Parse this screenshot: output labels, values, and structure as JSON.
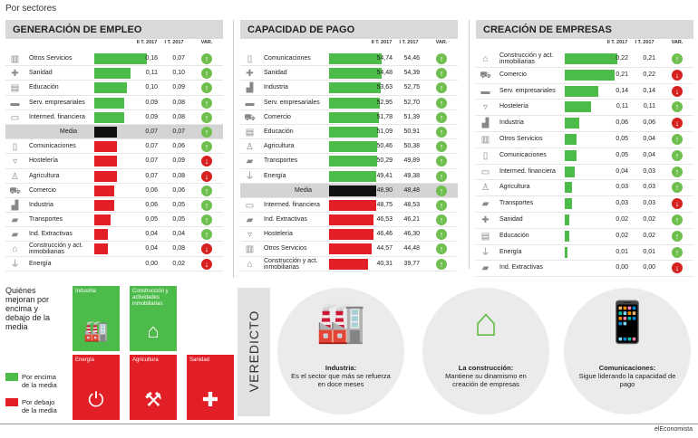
{
  "title": "Por sectores",
  "chart_data": [
    {
      "type": "bar",
      "title": "GENERACIÓN DE EMPLEO",
      "columns": [
        "II T. 2017",
        "I T. 2017",
        "VAR."
      ],
      "xlim": [
        0,
        0.16
      ],
      "rows": [
        {
          "label": "Otros Servicios",
          "v1": "0,16",
          "v2": "0,07",
          "value": 0.16,
          "trend": "up",
          "color": "#4dbb4a",
          "icon": "buildings-icon"
        },
        {
          "label": "Sanidad",
          "v1": "0,11",
          "v2": "0,10",
          "value": 0.11,
          "trend": "up",
          "color": "#4dbb4a",
          "icon": "cross-icon"
        },
        {
          "label": "Educación",
          "v1": "0,10",
          "v2": "0,09",
          "value": 0.1,
          "trend": "up",
          "color": "#4dbb4a",
          "icon": "school-icon"
        },
        {
          "label": "Serv. empresariales",
          "v1": "0,09",
          "v2": "0,08",
          "value": 0.09,
          "trend": "up",
          "color": "#4dbb4a",
          "icon": "briefcase-icon"
        },
        {
          "label": "Intermed. financiera",
          "v1": "0,09",
          "v2": "0,08",
          "value": 0.09,
          "trend": "up",
          "color": "#4dbb4a",
          "icon": "money-icon"
        },
        {
          "label": "Media",
          "v1": "0,07",
          "v2": "0,07",
          "value": 0.07,
          "trend": "up",
          "color": "#111111",
          "icon": "",
          "median": true
        },
        {
          "label": "Comunicaciones",
          "v1": "0,07",
          "v2": "0,06",
          "value": 0.07,
          "trend": "up",
          "color": "#e21f26",
          "icon": "phone-icon"
        },
        {
          "label": "Hostelería",
          "v1": "0,07",
          "v2": "0,09",
          "value": 0.07,
          "trend": "down",
          "color": "#e21f26",
          "icon": "glass-icon"
        },
        {
          "label": "Agricultura",
          "v1": "0,07",
          "v2": "0,08",
          "value": 0.07,
          "trend": "down",
          "color": "#e21f26",
          "icon": "farmer-icon"
        },
        {
          "label": "Comercio",
          "v1": "0,06",
          "v2": "0,06",
          "value": 0.06,
          "trend": "up",
          "color": "#e21f26",
          "icon": "cart-icon"
        },
        {
          "label": "Industria",
          "v1": "0,06",
          "v2": "0,05",
          "value": 0.06,
          "trend": "up",
          "color": "#e21f26",
          "icon": "factory-icon"
        },
        {
          "label": "Transportes",
          "v1": "0,05",
          "v2": "0,05",
          "value": 0.05,
          "trend": "up",
          "color": "#e21f26",
          "icon": "truck-icon"
        },
        {
          "label": "Ind. Extractivas",
          "v1": "0,04",
          "v2": "0,04",
          "value": 0.04,
          "trend": "up",
          "color": "#e21f26",
          "icon": "truck-icon"
        },
        {
          "label": "Construcción y act. inmobiliarias",
          "v1": "0,04",
          "v2": "0,08",
          "value": 0.04,
          "trend": "down",
          "color": "#e21f26",
          "icon": "house-icon"
        },
        {
          "label": "Energía",
          "v1": "0,00",
          "v2": "0,02",
          "value": 0.0,
          "trend": "down",
          "color": "#e21f26",
          "icon": "plug-icon"
        }
      ]
    },
    {
      "type": "bar",
      "title": "CAPACIDAD DE PAGO",
      "columns": [
        "II T. 2017",
        "I T. 2017",
        "VAR."
      ],
      "xlim": [
        0,
        54.74
      ],
      "rows": [
        {
          "label": "Comunicaciones",
          "v1": "54,74",
          "v2": "54,46",
          "value": 54.74,
          "trend": "up",
          "color": "#4dbb4a",
          "icon": "phone-icon"
        },
        {
          "label": "Sanidad",
          "v1": "54,48",
          "v2": "54,39",
          "value": 54.48,
          "trend": "up",
          "color": "#4dbb4a",
          "icon": "cross-icon"
        },
        {
          "label": "Industria",
          "v1": "53,63",
          "v2": "52,75",
          "value": 53.63,
          "trend": "up",
          "color": "#4dbb4a",
          "icon": "factory-icon"
        },
        {
          "label": "Serv. empresariales",
          "v1": "52,95",
          "v2": "52,70",
          "value": 52.95,
          "trend": "up",
          "color": "#4dbb4a",
          "icon": "briefcase-icon"
        },
        {
          "label": "Comercio",
          "v1": "51,78",
          "v2": "51,39",
          "value": 51.78,
          "trend": "up",
          "color": "#4dbb4a",
          "icon": "cart-icon"
        },
        {
          "label": "Educación",
          "v1": "51,09",
          "v2": "50,91",
          "value": 51.09,
          "trend": "up",
          "color": "#4dbb4a",
          "icon": "school-icon"
        },
        {
          "label": "Agricultura",
          "v1": "50,46",
          "v2": "50,38",
          "value": 50.46,
          "trend": "up",
          "color": "#4dbb4a",
          "icon": "farmer-icon"
        },
        {
          "label": "Transportes",
          "v1": "50,29",
          "v2": "49,89",
          "value": 50.29,
          "trend": "up",
          "color": "#4dbb4a",
          "icon": "truck-icon"
        },
        {
          "label": "Energía",
          "v1": "49,41",
          "v2": "49,38",
          "value": 49.41,
          "trend": "up",
          "color": "#4dbb4a",
          "icon": "plug-icon"
        },
        {
          "label": "Media",
          "v1": "48,90",
          "v2": "48,48",
          "value": 48.9,
          "trend": "up",
          "color": "#111111",
          "icon": "",
          "median": true
        },
        {
          "label": "Intermed. financiera",
          "v1": "48,75",
          "v2": "48,53",
          "value": 48.75,
          "trend": "up",
          "color": "#e21f26",
          "icon": "money-icon"
        },
        {
          "label": "Ind. Extractivas",
          "v1": "46,53",
          "v2": "46,21",
          "value": 46.53,
          "trend": "up",
          "color": "#e21f26",
          "icon": "truck-icon"
        },
        {
          "label": "Hostelería",
          "v1": "46,46",
          "v2": "46,30",
          "value": 46.46,
          "trend": "up",
          "color": "#e21f26",
          "icon": "glass-icon"
        },
        {
          "label": "Otros Servicios",
          "v1": "44,57",
          "v2": "44,48",
          "value": 44.57,
          "trend": "up",
          "color": "#e21f26",
          "icon": "buildings-icon"
        },
        {
          "label": "Construcción y act. inmobiliarias",
          "v1": "40,31",
          "v2": "39,77",
          "value": 40.31,
          "trend": "up",
          "color": "#e21f26",
          "icon": "house-icon"
        }
      ]
    },
    {
      "type": "bar",
      "title": "CREACIÓN DE EMPRESAS",
      "columns": [
        "II T. 2017",
        "I T. 2017",
        "VAR."
      ],
      "xlim": [
        0,
        0.22
      ],
      "rows": [
        {
          "label": "Construcción y act. inmobiliarias",
          "v1": "0,22",
          "v2": "0,21",
          "value": 0.22,
          "trend": "up",
          "color": "#4dbb4a",
          "icon": "house-icon"
        },
        {
          "label": "Comercio",
          "v1": "0,21",
          "v2": "0,22",
          "value": 0.21,
          "trend": "down",
          "color": "#4dbb4a",
          "icon": "cart-icon"
        },
        {
          "label": "Serv. empresariales",
          "v1": "0,14",
          "v2": "0,14",
          "value": 0.14,
          "trend": "down",
          "color": "#4dbb4a",
          "icon": "briefcase-icon"
        },
        {
          "label": "Hostelería",
          "v1": "0,11",
          "v2": "0,11",
          "value": 0.11,
          "trend": "up",
          "color": "#4dbb4a",
          "icon": "glass-icon"
        },
        {
          "label": "Industria",
          "v1": "0,06",
          "v2": "0,06",
          "value": 0.06,
          "trend": "down",
          "color": "#4dbb4a",
          "icon": "factory-icon"
        },
        {
          "label": "Otros Servicios",
          "v1": "0,05",
          "v2": "0,04",
          "value": 0.05,
          "trend": "up",
          "color": "#4dbb4a",
          "icon": "buildings-icon"
        },
        {
          "label": "Comunicaciones",
          "v1": "0,05",
          "v2": "0,04",
          "value": 0.05,
          "trend": "up",
          "color": "#4dbb4a",
          "icon": "phone-icon"
        },
        {
          "label": "Intermed. financiera",
          "v1": "0,04",
          "v2": "0,03",
          "value": 0.04,
          "trend": "up",
          "color": "#4dbb4a",
          "icon": "money-icon"
        },
        {
          "label": "Agricultura",
          "v1": "0,03",
          "v2": "0,03",
          "value": 0.03,
          "trend": "up",
          "color": "#4dbb4a",
          "icon": "farmer-icon"
        },
        {
          "label": "Transportes",
          "v1": "0,03",
          "v2": "0,03",
          "value": 0.03,
          "trend": "down",
          "color": "#4dbb4a",
          "icon": "truck-icon"
        },
        {
          "label": "Sanidad",
          "v1": "0,02",
          "v2": "0,02",
          "value": 0.02,
          "trend": "up",
          "color": "#4dbb4a",
          "icon": "cross-icon"
        },
        {
          "label": "Educación",
          "v1": "0,02",
          "v2": "0,02",
          "value": 0.02,
          "trend": "up",
          "color": "#4dbb4a",
          "icon": "school-icon"
        },
        {
          "label": "Energía",
          "v1": "0,01",
          "v2": "0,01",
          "value": 0.01,
          "trend": "up",
          "color": "#4dbb4a",
          "icon": "plug-icon"
        },
        {
          "label": "Ind. Extractivas",
          "v1": "0,00",
          "v2": "0,00",
          "value": 0.0,
          "trend": "down",
          "color": "#4dbb4a",
          "icon": "truck-icon"
        }
      ]
    }
  ],
  "summary": {
    "title": "Quiénes mejoran por encima y debajo de la media",
    "legend": [
      {
        "label": "Por encima de la media",
        "color": "#4dbb4a"
      },
      {
        "label": "Por debajo de la media",
        "color": "#e21f26"
      }
    ],
    "tiles": [
      {
        "label": "Industria",
        "color": "#4dbb4a",
        "icon": "factory-icon",
        "glyph": "🏭"
      },
      {
        "label": "Construcción y actividades inmobiliarias",
        "color": "#4dbb4a",
        "icon": "house-icon",
        "glyph": "⌂"
      },
      {
        "label": "Energía",
        "color": "#e21f26",
        "icon": "plug-icon",
        "glyph": "⏻"
      },
      {
        "label": "Agricultura",
        "color": "#e21f26",
        "icon": "farmer-icon",
        "glyph": "⚒"
      },
      {
        "label": "Sanidad",
        "color": "#e21f26",
        "icon": "cross-icon",
        "glyph": "✚"
      }
    ]
  },
  "verdict": {
    "label": "VEREDICTO",
    "items": [
      {
        "title": "Industria:",
        "text": "Es el sector que más se refuerza en doce meses",
        "icon": "factory-icon",
        "glyph": "🏭"
      },
      {
        "title": "La construcción:",
        "text": "Mantiene su dinamismo en creación de empresas",
        "icon": "house-icon",
        "glyph": "⌂"
      },
      {
        "title": "Comunicaciones:",
        "text": "Sigue liderando la capacidad de pago",
        "icon": "phone-icon",
        "glyph": "📱"
      }
    ]
  },
  "credit": "elEconomista",
  "icons": {
    "buildings-icon": "▥",
    "cross-icon": "✚",
    "school-icon": "▤",
    "briefcase-icon": "▬",
    "money-icon": "▭",
    "phone-icon": "▯",
    "glass-icon": "▿",
    "farmer-icon": "♙",
    "cart-icon": "⛟",
    "factory-icon": "▟",
    "truck-icon": "▰",
    "house-icon": "⌂",
    "plug-icon": "⏚"
  }
}
